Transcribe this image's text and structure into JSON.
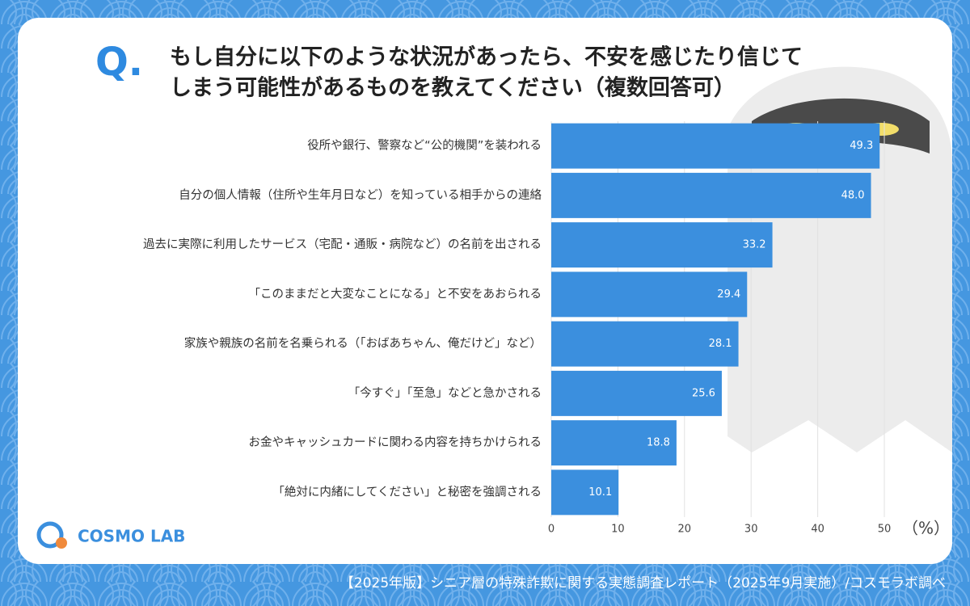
{
  "logo": "COSMO LAB",
  "footer": "【2025年版】シニア層の特殊詐欺に関する実態調査レポート（2025年9月実施）/コスモラボ調べ",
  "chart_data": {
    "type": "bar",
    "orientation": "horizontal",
    "question_mark": "Q.",
    "title_lines": [
      "もし自分に以下のような状況があったら、不安を感じたり信じて",
      "しまう可能性があるものを教えてください（複数回答可）"
    ],
    "categories": [
      "役所や銀行、警察など“公的機関”を装われる",
      "自分の個人情報（住所や生年月日など）を知っている相手からの連絡",
      "過去に実際に利用したサービス（宅配・通販・病院など）の名前を出される",
      "「このままだと大変なことになる」と不安をあおられる",
      "家族や親族の名前を名乗られる（「おばあちゃん、俺だけど」など）",
      "「今すぐ」「至急」などと急かされる",
      "お金やキャッシュカードに関わる内容を持ちかけられる",
      "「絶対に内緒にしてください」と秘密を強調される"
    ],
    "values": [
      49.3,
      48.0,
      33.2,
      29.4,
      28.1,
      25.6,
      18.8,
      10.1
    ],
    "value_labels": [
      "49.3",
      "48.0",
      "33.2",
      "29.4",
      "28.1",
      "25.6",
      "18.8",
      "10.1"
    ],
    "color": "#3b8fde",
    "xlim": [
      0,
      50
    ],
    "xticks": [
      0,
      10,
      20,
      30,
      40,
      50
    ],
    "x_label": "（%）",
    "grid": true
  }
}
